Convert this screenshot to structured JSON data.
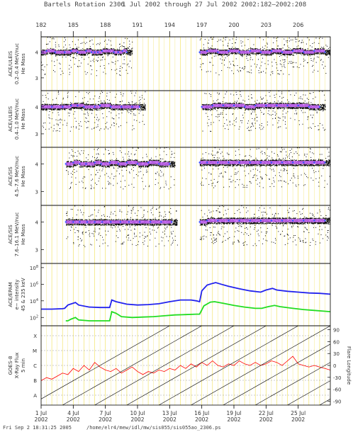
{
  "header": {
    "title": "Bartels Rotation 2306",
    "date_range": "1 Jul 2002 through 27 Jul 2002",
    "doy_range": "2002:182–2002:208"
  },
  "footer": {
    "timestamp": "Fri Sep  2 18:31:25 2005",
    "path": "/home/elr4/mew/idl/mw/sis055/sis055ao_2306.ps"
  },
  "colors": {
    "density_high": "#3355ff",
    "density_mid": "#cc66ff",
    "scatter": "#000000",
    "epam_low": "#2222ee",
    "epam_high": "#22dd22",
    "xray": "#ff0000",
    "vertical_grid": "#eedd44"
  },
  "chart_data": [
    {
      "type": "scatter",
      "panel": "ace-uleis-1",
      "ylabel_lines": [
        "ACE/ULEIS",
        "0.2–0.4 MeV/nuc",
        "He Mass"
      ],
      "ylim": [
        2.5,
        4.6
      ],
      "yticks": [
        3,
        4
      ],
      "series": [
        {
          "values": [
            [
              1.0,
              4.0
            ],
            [
              1.5,
              4.05
            ],
            [
              2.3,
              4.0
            ],
            [
              3.2,
              4.0
            ],
            [
              3.8,
              4.05
            ],
            [
              4.4,
              4.0
            ],
            [
              5.2,
              4.05
            ],
            [
              5.7,
              4.0
            ],
            [
              6.0,
              4.0
            ],
            [
              6.3,
              4.0
            ],
            [
              6.7,
              4.05
            ],
            [
              7.8,
              4.0
            ],
            [
              8.2,
              4.0
            ],
            [
              8.6,
              4.05
            ],
            [
              9.0,
              4.0
            ],
            [
              15.8,
              4.0
            ],
            [
              16.5,
              4.05
            ],
            [
              17.5,
              4.0
            ],
            [
              18.5,
              4.05
            ],
            [
              19.5,
              4.0
            ],
            [
              20.5,
              4.05
            ],
            [
              21.5,
              4.0
            ],
            [
              22.5,
              4.05
            ],
            [
              23.5,
              4.0
            ],
            [
              24.5,
              4.05
            ],
            [
              25.5,
              4.0
            ],
            [
              26.5,
              4.05
            ],
            [
              27.5,
              4.0
            ]
          ]
        }
      ]
    },
    {
      "type": "scatter",
      "panel": "ace-uleis-2",
      "ylabel_lines": [
        "ACE/ULEIS",
        "0.4–1.0 MeV/nuc",
        "He Mass"
      ],
      "ylim": [
        2.5,
        4.6
      ],
      "yticks": [
        3,
        4
      ],
      "series": [
        {
          "values": [
            [
              1.0,
              4.0
            ],
            [
              2.0,
              4.0
            ],
            [
              3.0,
              4.0
            ],
            [
              3.8,
              4.05
            ],
            [
              4.4,
              4.05
            ],
            [
              5.0,
              4.0
            ],
            [
              6.0,
              4.0
            ],
            [
              6.5,
              4.05
            ],
            [
              7.5,
              4.0
            ],
            [
              8.5,
              4.0
            ],
            [
              9.5,
              4.0
            ],
            [
              10.2,
              4.0
            ],
            [
              16.0,
              4.0
            ],
            [
              17.0,
              4.05
            ],
            [
              18.0,
              4.05
            ],
            [
              19.0,
              4.05
            ],
            [
              20.0,
              4.0
            ],
            [
              21.0,
              4.05
            ],
            [
              22.0,
              4.05
            ],
            [
              23.0,
              4.05
            ],
            [
              24.0,
              4.05
            ],
            [
              25.0,
              4.05
            ],
            [
              26.0,
              4.0
            ],
            [
              27.0,
              4.0
            ]
          ]
        }
      ]
    },
    {
      "type": "scatter",
      "panel": "ace-sis-1",
      "ylabel_lines": [
        "ACE/SIS",
        "4.5–7.6 MeV/nuc",
        "He Mass"
      ],
      "ylim": [
        2.5,
        4.6
      ],
      "yticks": [
        3,
        4
      ],
      "series": [
        {
          "values": [
            [
              3.3,
              4.0
            ],
            [
              4.0,
              4.05
            ],
            [
              4.6,
              4.0
            ],
            [
              5.2,
              4.0
            ],
            [
              6.0,
              4.05
            ],
            [
              6.6,
              4.0
            ],
            [
              7.4,
              4.05
            ],
            [
              8.2,
              4.0
            ],
            [
              9.0,
              4.05
            ],
            [
              10.0,
              4.0
            ],
            [
              11.0,
              4.05
            ],
            [
              12.0,
              4.0
            ],
            [
              13.0,
              4.0
            ],
            [
              15.8,
              4.05
            ],
            [
              16.5,
              4.05
            ],
            [
              17.5,
              4.05
            ],
            [
              18.5,
              4.05
            ],
            [
              19.5,
              4.05
            ],
            [
              20.5,
              4.05
            ],
            [
              21.5,
              4.05
            ],
            [
              22.5,
              4.05
            ],
            [
              23.5,
              4.05
            ],
            [
              24.5,
              4.05
            ],
            [
              25.5,
              4.05
            ],
            [
              26.5,
              4.05
            ],
            [
              27.5,
              4.05
            ]
          ]
        }
      ]
    },
    {
      "type": "scatter",
      "panel": "ace-sis-2",
      "ylabel_lines": [
        "ACE/SIS",
        "7.6–16.1 MeV/nuc",
        "He Mass"
      ],
      "ylim": [
        2.5,
        4.6
      ],
      "yticks": [
        3,
        4
      ],
      "series": [
        {
          "values": [
            [
              3.3,
              4.0
            ],
            [
              4.0,
              4.0
            ],
            [
              4.6,
              4.0
            ],
            [
              5.3,
              4.0
            ],
            [
              6.0,
              4.0
            ],
            [
              6.7,
              4.0
            ],
            [
              7.5,
              4.0
            ],
            [
              8.4,
              4.0
            ],
            [
              9.2,
              4.0
            ],
            [
              10.2,
              4.0
            ],
            [
              11.2,
              4.0
            ],
            [
              12.2,
              4.0
            ],
            [
              13.2,
              4.0
            ],
            [
              15.8,
              4.0
            ],
            [
              16.5,
              4.05
            ],
            [
              17.5,
              4.05
            ],
            [
              18.5,
              4.05
            ],
            [
              19.5,
              4.05
            ],
            [
              20.5,
              4.05
            ],
            [
              21.5,
              4.05
            ],
            [
              22.5,
              4.05
            ],
            [
              23.5,
              4.05
            ],
            [
              24.5,
              4.05
            ],
            [
              25.5,
              4.05
            ],
            [
              26.5,
              4.05
            ],
            [
              27.5,
              4.05
            ]
          ]
        }
      ]
    },
    {
      "type": "line",
      "panel": "ace-epam",
      "ylabel_lines": [
        "ACE/EPAM",
        "e− intensity",
        "45 & 235 keV"
      ],
      "yscale": "log",
      "ylim_log10": [
        1,
        8.5
      ],
      "yticks_log10": [
        2,
        4,
        6,
        8
      ],
      "series": [
        {
          "color_key": "epam_low",
          "values": [
            [
              1.0,
              3.0
            ],
            [
              2.0,
              3.0
            ],
            [
              3.0,
              3.05
            ],
            [
              3.2,
              3.1
            ],
            [
              3.5,
              3.5
            ],
            [
              4.2,
              3.8
            ],
            [
              4.5,
              3.5
            ],
            [
              5.5,
              3.25
            ],
            [
              6.5,
              3.2
            ],
            [
              7.4,
              3.2
            ],
            [
              7.6,
              4.1
            ],
            [
              8.0,
              3.9
            ],
            [
              9.0,
              3.6
            ],
            [
              10.0,
              3.5
            ],
            [
              11.0,
              3.55
            ],
            [
              12.0,
              3.65
            ],
            [
              13.0,
              3.9
            ],
            [
              14.0,
              4.1
            ],
            [
              15.0,
              4.1
            ],
            [
              15.5,
              4.0
            ],
            [
              15.8,
              3.9
            ],
            [
              16.0,
              5.2
            ],
            [
              16.5,
              5.9
            ],
            [
              17.0,
              6.1
            ],
            [
              17.3,
              6.2
            ],
            [
              17.8,
              6.0
            ],
            [
              18.5,
              5.75
            ],
            [
              19.5,
              5.45
            ],
            [
              20.5,
              5.2
            ],
            [
              21.5,
              5.05
            ],
            [
              22.0,
              5.3
            ],
            [
              22.6,
              5.5
            ],
            [
              23.0,
              5.3
            ],
            [
              24.0,
              5.15
            ],
            [
              25.0,
              5.05
            ],
            [
              26.0,
              4.95
            ],
            [
              27.0,
              4.9
            ],
            [
              28.0,
              4.8
            ]
          ]
        },
        {
          "color_key": "epam_high",
          "values": [
            [
              3.3,
              1.6
            ],
            [
              3.5,
              1.6
            ],
            [
              3.8,
              1.8
            ],
            [
              4.2,
              2.0
            ],
            [
              4.5,
              1.7
            ],
            [
              5.5,
              1.6
            ],
            [
              6.5,
              1.6
            ],
            [
              7.4,
              1.6
            ],
            [
              7.6,
              2.7
            ],
            [
              8.0,
              2.5
            ],
            [
              8.5,
              2.1
            ],
            [
              9.5,
              2.0
            ],
            [
              10.5,
              2.05
            ],
            [
              11.5,
              2.1
            ],
            [
              12.5,
              2.2
            ],
            [
              13.5,
              2.3
            ],
            [
              14.5,
              2.35
            ],
            [
              15.5,
              2.4
            ],
            [
              15.8,
              2.4
            ],
            [
              16.2,
              3.4
            ],
            [
              16.8,
              3.85
            ],
            [
              17.2,
              3.9
            ],
            [
              18.0,
              3.7
            ],
            [
              19.0,
              3.45
            ],
            [
              20.0,
              3.25
            ],
            [
              21.0,
              3.1
            ],
            [
              21.6,
              3.1
            ],
            [
              22.2,
              3.3
            ],
            [
              22.8,
              3.45
            ],
            [
              23.3,
              3.3
            ],
            [
              24.5,
              3.1
            ],
            [
              25.5,
              2.95
            ],
            [
              26.5,
              2.85
            ],
            [
              27.5,
              2.75
            ],
            [
              28.0,
              2.7
            ]
          ]
        }
      ]
    },
    {
      "type": "line",
      "panel": "goes-8",
      "ylabel_lines": [
        "GOES-8",
        "X-Ray Flux",
        "5 min"
      ],
      "yticklabels_left": [
        "X",
        "M",
        "C",
        "B",
        "A"
      ],
      "ylabel_right": "Flare Longitude",
      "yticks_right": [
        90,
        60,
        30,
        0,
        -30,
        -60,
        -90
      ],
      "series": [
        {
          "color_key": "xray",
          "values": [
            [
              1.0,
              1.6
            ],
            [
              1.5,
              1.8
            ],
            [
              2.0,
              1.7
            ],
            [
              2.5,
              1.9
            ],
            [
              3.0,
              2.1
            ],
            [
              3.5,
              2.0
            ],
            [
              4.0,
              2.4
            ],
            [
              4.5,
              2.2
            ],
            [
              5.0,
              2.6
            ],
            [
              5.5,
              2.3
            ],
            [
              6.0,
              2.8
            ],
            [
              6.5,
              2.5
            ],
            [
              7.0,
              2.3
            ],
            [
              7.5,
              2.2
            ],
            [
              8.0,
              2.4
            ],
            [
              8.5,
              2.1
            ],
            [
              9.0,
              2.3
            ],
            [
              9.5,
              2.5
            ],
            [
              10.0,
              2.2
            ],
            [
              10.5,
              2.0
            ],
            [
              11.0,
              2.2
            ],
            [
              11.5,
              2.1
            ],
            [
              12.0,
              2.3
            ],
            [
              12.5,
              2.2
            ],
            [
              13.0,
              2.4
            ],
            [
              13.5,
              2.3
            ],
            [
              14.0,
              2.6
            ],
            [
              14.5,
              2.4
            ],
            [
              15.0,
              2.7
            ],
            [
              15.5,
              2.5
            ],
            [
              16.0,
              2.8
            ],
            [
              16.5,
              2.6
            ],
            [
              17.0,
              2.9
            ],
            [
              17.5,
              2.6
            ],
            [
              18.0,
              2.5
            ],
            [
              18.5,
              2.7
            ],
            [
              19.0,
              2.6
            ],
            [
              19.5,
              2.9
            ],
            [
              20.0,
              2.7
            ],
            [
              20.5,
              2.6
            ],
            [
              21.0,
              2.8
            ],
            [
              21.5,
              2.6
            ],
            [
              22.0,
              2.7
            ],
            [
              22.5,
              2.9
            ],
            [
              23.0,
              2.8
            ],
            [
              23.5,
              2.6
            ],
            [
              24.0,
              2.9
            ],
            [
              24.5,
              3.2
            ],
            [
              25.0,
              2.7
            ],
            [
              25.5,
              2.6
            ],
            [
              26.0,
              2.5
            ],
            [
              26.5,
              2.6
            ],
            [
              27.0,
              2.5
            ],
            [
              27.5,
              2.4
            ],
            [
              28.0,
              2.3
            ]
          ]
        }
      ]
    }
  ],
  "top_axis": {
    "labels": [
      "182",
      "185",
      "188",
      "191",
      "194",
      "197",
      "200",
      "203",
      "206"
    ]
  },
  "bottom_axis": {
    "labels": [
      {
        "day": "1 Jul",
        "year": "2002"
      },
      {
        "day": "4 Jul",
        "year": "2002"
      },
      {
        "day": "7 Jul",
        "year": "2002"
      },
      {
        "day": "10 Jul",
        "year": "2002"
      },
      {
        "day": "13 Jul",
        "year": "2002"
      },
      {
        "day": "16 Jul",
        "year": "2002"
      },
      {
        "day": "19 Jul",
        "year": "2002"
      },
      {
        "day": "22 Jul",
        "year": "2002"
      },
      {
        "day": "25 Jul",
        "year": "2002"
      }
    ]
  }
}
